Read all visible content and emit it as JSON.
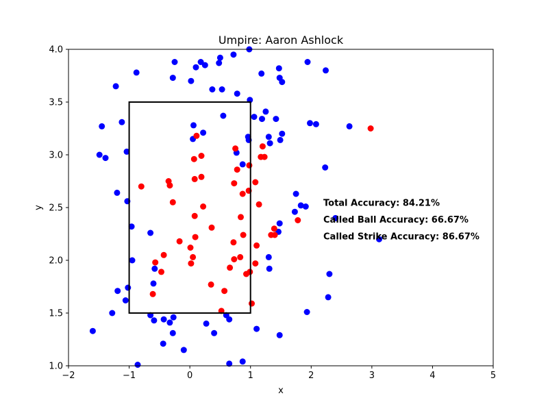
{
  "chart_data": {
    "type": "scatter",
    "title": "Umpire: Aaron Ashlock",
    "xlabel": "x",
    "ylabel": "y",
    "xlim": [
      -2,
      5
    ],
    "ylim": [
      1.0,
      4.0
    ],
    "xticks": [
      -2,
      -1,
      0,
      1,
      2,
      3,
      4,
      5
    ],
    "xtick_labels": [
      "−2",
      "−1",
      "0",
      "1",
      "2",
      "3",
      "4",
      "5"
    ],
    "yticks": [
      1.0,
      1.5,
      2.0,
      2.5,
      3.0,
      3.5,
      4.0
    ],
    "ytick_labels": [
      "1.0",
      "1.5",
      "2.0",
      "2.5",
      "3.0",
      "3.5",
      "4.0"
    ],
    "grid": false,
    "strike_zone": {
      "x": [
        -1,
        1
      ],
      "y": [
        1.5,
        3.5
      ],
      "color": "#000000"
    },
    "annotations": [
      {
        "text": "Total Accuracy: 84.21%",
        "x": 2.2,
        "y": 2.55
      },
      {
        "text": "Called Ball Accuracy: 66.67%",
        "x": 2.2,
        "y": 2.39
      },
      {
        "text": "Called Strike Accuracy: 86.67%",
        "x": 2.2,
        "y": 2.23
      }
    ],
    "series": [
      {
        "color": "#0000ff",
        "points": [
          [
            -0.88,
            3.78
          ],
          [
            -0.25,
            3.88
          ],
          [
            0.18,
            3.88
          ],
          [
            0.25,
            3.85
          ],
          [
            0.5,
            3.92
          ],
          [
            0.72,
            3.95
          ],
          [
            0.98,
            4.0
          ],
          [
            0.1,
            3.83
          ],
          [
            0.48,
            3.87
          ],
          [
            0.02,
            3.7
          ],
          [
            -0.28,
            3.73
          ],
          [
            -1.22,
            3.65
          ],
          [
            0.37,
            3.62
          ],
          [
            0.53,
            3.62
          ],
          [
            0.78,
            3.58
          ],
          [
            1.18,
            3.77
          ],
          [
            1.47,
            3.82
          ],
          [
            1.48,
            3.73
          ],
          [
            1.52,
            3.69
          ],
          [
            1.94,
            3.88
          ],
          [
            2.24,
            3.8
          ],
          [
            0.99,
            3.52
          ],
          [
            1.25,
            3.41
          ],
          [
            1.06,
            3.36
          ],
          [
            1.19,
            3.34
          ],
          [
            1.42,
            3.34
          ],
          [
            0.55,
            3.37
          ],
          [
            -1.12,
            3.31
          ],
          [
            -1.45,
            3.27
          ],
          [
            0.06,
            3.28
          ],
          [
            0.22,
            3.21
          ],
          [
            0.05,
            3.15
          ],
          [
            0.96,
            3.17
          ],
          [
            0.97,
            3.14
          ],
          [
            1.3,
            3.17
          ],
          [
            1.32,
            3.11
          ],
          [
            1.49,
            3.14
          ],
          [
            1.52,
            3.2
          ],
          [
            1.98,
            3.3
          ],
          [
            2.08,
            3.29
          ],
          [
            2.63,
            3.27
          ],
          [
            -1.49,
            3.0
          ],
          [
            -1.39,
            2.97
          ],
          [
            -1.04,
            3.03
          ],
          [
            0.77,
            3.02
          ],
          [
            0.87,
            2.91
          ],
          [
            2.23,
            2.88
          ],
          [
            -1.2,
            2.64
          ],
          [
            -1.03,
            2.56
          ],
          [
            1.75,
            2.63
          ],
          [
            1.83,
            2.52
          ],
          [
            1.91,
            2.51
          ],
          [
            1.73,
            2.46
          ],
          [
            1.48,
            2.35
          ],
          [
            1.46,
            2.27
          ],
          [
            2.4,
            2.4
          ],
          [
            -0.96,
            2.32
          ],
          [
            -0.65,
            2.26
          ],
          [
            -0.95,
            2.0
          ],
          [
            3.12,
            2.2
          ],
          [
            1.3,
            2.03
          ],
          [
            1.31,
            1.92
          ],
          [
            -0.58,
            1.92
          ],
          [
            -0.6,
            1.78
          ],
          [
            2.3,
            1.87
          ],
          [
            -1.02,
            1.74
          ],
          [
            -1.19,
            1.71
          ],
          [
            -1.06,
            1.62
          ],
          [
            2.28,
            1.65
          ],
          [
            -1.28,
            1.5
          ],
          [
            -0.65,
            1.48
          ],
          [
            -0.59,
            1.43
          ],
          [
            -0.43,
            1.44
          ],
          [
            -0.33,
            1.41
          ],
          [
            -0.27,
            1.46
          ],
          [
            0.6,
            1.48
          ],
          [
            0.65,
            1.44
          ],
          [
            0.27,
            1.4
          ],
          [
            1.93,
            1.51
          ],
          [
            -1.6,
            1.33
          ],
          [
            0.4,
            1.31
          ],
          [
            1.1,
            1.35
          ],
          [
            1.48,
            1.29
          ],
          [
            -0.28,
            1.31
          ],
          [
            -0.44,
            1.21
          ],
          [
            -0.1,
            1.15
          ],
          [
            -0.86,
            1.01
          ],
          [
            0.65,
            1.02
          ],
          [
            0.87,
            1.04
          ]
        ]
      },
      {
        "color": "#ff0000",
        "points": [
          [
            2.98,
            3.25
          ],
          [
            0.11,
            3.18
          ],
          [
            0.75,
            3.06
          ],
          [
            1.2,
            3.08
          ],
          [
            0.07,
            2.96
          ],
          [
            0.19,
            2.99
          ],
          [
            1.17,
            2.98
          ],
          [
            1.23,
            2.98
          ],
          [
            0.98,
            2.9
          ],
          [
            0.78,
            2.86
          ],
          [
            -0.8,
            2.7
          ],
          [
            -0.35,
            2.75
          ],
          [
            -0.33,
            2.71
          ],
          [
            0.08,
            2.77
          ],
          [
            0.19,
            2.79
          ],
          [
            0.73,
            2.73
          ],
          [
            1.08,
            2.74
          ],
          [
            0.97,
            2.66
          ],
          [
            0.87,
            2.63
          ],
          [
            -0.28,
            2.55
          ],
          [
            0.22,
            2.51
          ],
          [
            1.14,
            2.53
          ],
          [
            0.08,
            2.42
          ],
          [
            0.84,
            2.41
          ],
          [
            0.36,
            2.31
          ],
          [
            1.39,
            2.3
          ],
          [
            0.09,
            2.22
          ],
          [
            0.88,
            2.24
          ],
          [
            1.34,
            2.24
          ],
          [
            1.4,
            2.24
          ],
          [
            -0.17,
            2.18
          ],
          [
            0.72,
            2.17
          ],
          [
            1.1,
            2.14
          ],
          [
            0.01,
            2.12
          ],
          [
            -0.43,
            2.05
          ],
          [
            0.05,
            2.03
          ],
          [
            0.73,
            2.01
          ],
          [
            0.83,
            2.03
          ],
          [
            -0.57,
            1.98
          ],
          [
            0.02,
            1.97
          ],
          [
            1.08,
            1.97
          ],
          [
            -0.47,
            1.89
          ],
          [
            0.66,
            1.93
          ],
          [
            0.93,
            1.87
          ],
          [
            0.99,
            1.89
          ],
          [
            -0.61,
            1.68
          ],
          [
            0.35,
            1.77
          ],
          [
            0.57,
            1.71
          ],
          [
            1.02,
            1.59
          ],
          [
            0.52,
            1.52
          ],
          [
            1.78,
            2.38
          ]
        ]
      }
    ]
  }
}
